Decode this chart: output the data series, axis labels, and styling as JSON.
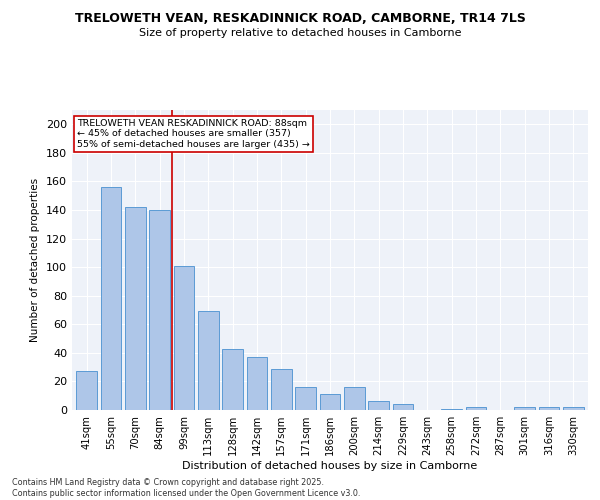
{
  "title1": "TRELOWETH VEAN, RESKADINNICK ROAD, CAMBORNE, TR14 7LS",
  "title2": "Size of property relative to detached houses in Camborne",
  "xlabel": "Distribution of detached houses by size in Camborne",
  "ylabel": "Number of detached properties",
  "categories": [
    "41sqm",
    "55sqm",
    "70sqm",
    "84sqm",
    "99sqm",
    "113sqm",
    "128sqm",
    "142sqm",
    "157sqm",
    "171sqm",
    "186sqm",
    "200sqm",
    "214sqm",
    "229sqm",
    "243sqm",
    "258sqm",
    "272sqm",
    "287sqm",
    "301sqm",
    "316sqm",
    "330sqm"
  ],
  "values": [
    27,
    156,
    142,
    140,
    101,
    69,
    43,
    37,
    29,
    16,
    11,
    16,
    6,
    4,
    0,
    1,
    2,
    0,
    2,
    2,
    2
  ],
  "bar_color": "#aec6e8",
  "bar_edge_color": "#5b9bd5",
  "vline_x": 3.5,
  "vline_color": "#cc0000",
  "annotation_text": "TRELOWETH VEAN RESKADINNICK ROAD: 88sqm\n← 45% of detached houses are smaller (357)\n55% of semi-detached houses are larger (435) →",
  "annotation_box_color": "#ffffff",
  "annotation_box_edge": "#cc0000",
  "ylim": [
    0,
    210
  ],
  "yticks": [
    0,
    20,
    40,
    60,
    80,
    100,
    120,
    140,
    160,
    180,
    200
  ],
  "footer": "Contains HM Land Registry data © Crown copyright and database right 2025.\nContains public sector information licensed under the Open Government Licence v3.0.",
  "bg_color": "#eef2f9"
}
